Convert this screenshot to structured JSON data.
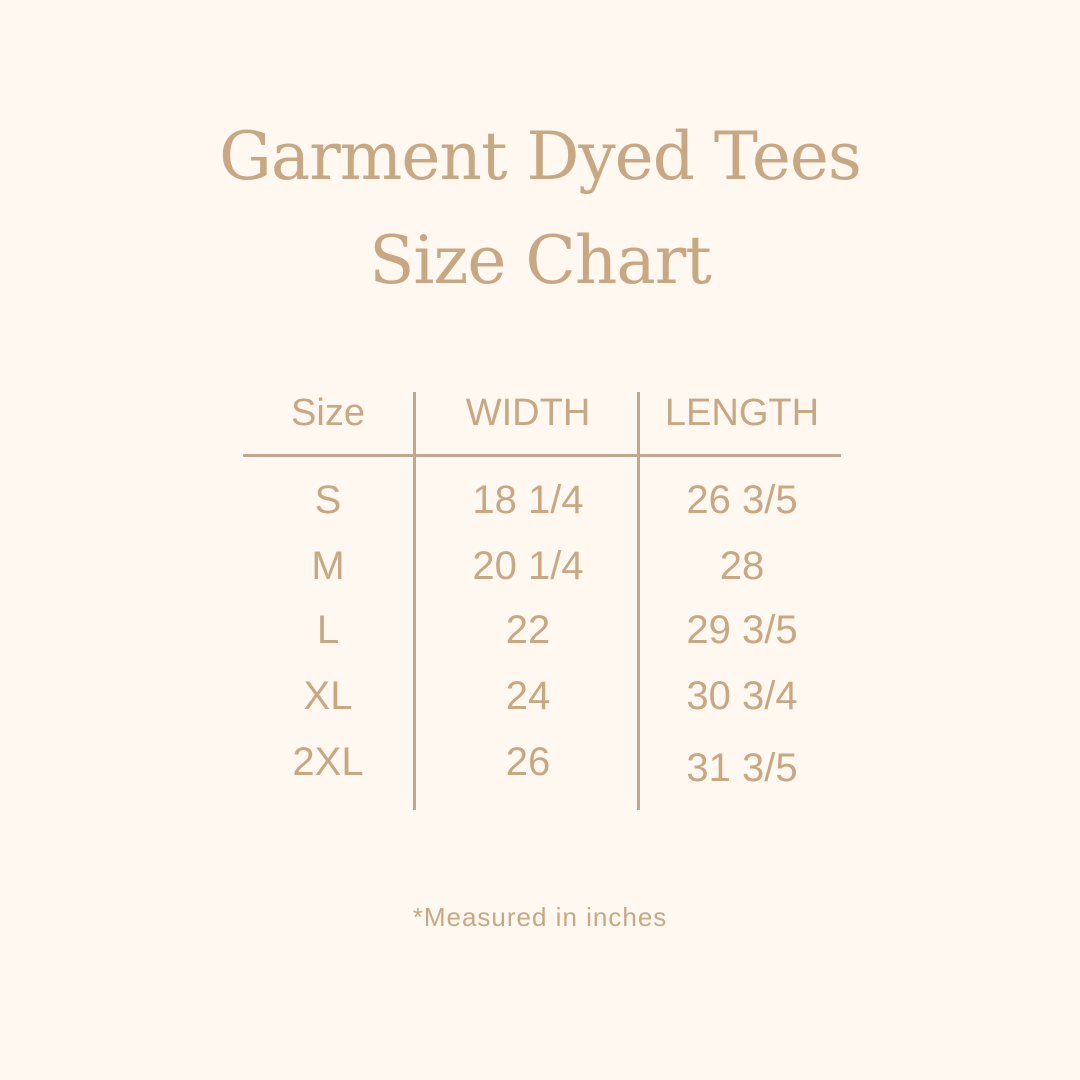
{
  "title_line1": "Garment Dyed Tees",
  "title_line2": "Size Chart",
  "table": {
    "headers": [
      "Size",
      "WIDTH",
      "LENGTH"
    ],
    "rows": [
      [
        "S",
        "18 1/4",
        "26 3/5"
      ],
      [
        "M",
        "20 1/4",
        "28"
      ],
      [
        "L",
        "22",
        "29 3/5"
      ],
      [
        "XL",
        "24",
        "30 3/4"
      ],
      [
        "2XL",
        "26",
        "31 3/5"
      ]
    ]
  },
  "footnote": "*Measured in inches",
  "colors": {
    "background": "#fef8f0",
    "text": "#c8a783",
    "lines": "#bfa88f"
  }
}
